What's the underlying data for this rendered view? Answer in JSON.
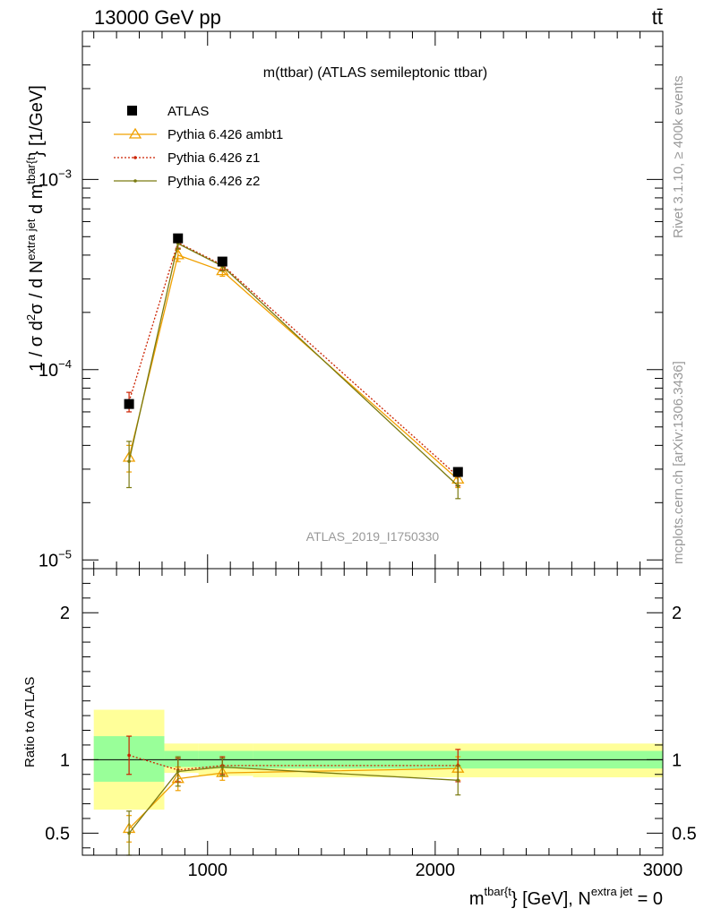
{
  "header": {
    "energy_label": "13000 GeV pp",
    "process_label": "tt̄"
  },
  "side_labels": {
    "rivet": "Rivet 3.1.10, ≥ 400k events",
    "mcplots": "mcplots.cern.ch [arXiv:1306.3436]"
  },
  "colors": {
    "data": "#000000",
    "ambt1": "#f0a000",
    "z1": "#cc2200",
    "z2": "#7a7a10",
    "band_inner": "#99ff99",
    "band_outer": "#ffff99",
    "watermark": "#999999"
  },
  "chart_data": {
    "type": "scatter",
    "title": "m(ttbar) (ATLAS semileptonic ttbar)",
    "analysis_id": "ATLAS_2019_I1750330",
    "xlabel_main": "m",
    "xlabel_sup": "tbar{t",
    "xlabel_rest": "} [GeV], N",
    "xlabel_sup2": "extra jet",
    "xlabel_tail": " = 0",
    "ylabel_lead": "1 / σ d",
    "ylabel_sup1": "2",
    "ylabel_mid": "σ / d N",
    "ylabel_sup2": "extra jet",
    "ylabel_mid2": " d m",
    "ylabel_sup3": "tbar{t",
    "ylabel_tail": "} [1/GeV]",
    "ratio_ylabel": "Ratio to ATLAS",
    "xlim": [
      450,
      3000
    ],
    "ylim": [
      9e-06,
      0.006
    ],
    "ratio_ylim": [
      0.35,
      2.3
    ],
    "x_ticks": [
      1000,
      2000,
      3000
    ],
    "x_tick_labels": [
      "1000",
      "2000",
      "3000"
    ],
    "y_major_ticks": [
      1e-05,
      0.0001,
      0.001
    ],
    "y_tick_labels": [
      {
        "mant": "10",
        "exp": "−5"
      },
      {
        "mant": "10",
        "exp": "−4"
      },
      {
        "mant": "10",
        "exp": "−3"
      }
    ],
    "ratio_ticks": [
      0.5,
      1,
      2
    ],
    "ratio_tick_labels": [
      "0.5",
      "1",
      "2"
    ],
    "bins": [
      [
        500,
        810
      ],
      [
        810,
        960
      ],
      [
        960,
        1200
      ],
      [
        1200,
        3000
      ]
    ],
    "band_inner": [
      [
        0.85,
        1.16
      ],
      [
        0.95,
        1.06
      ],
      [
        0.94,
        1.06
      ],
      [
        0.94,
        1.06
      ]
    ],
    "band_outer": [
      [
        0.66,
        1.34
      ],
      [
        0.91,
        1.11
      ],
      [
        0.89,
        1.11
      ],
      [
        0.88,
        1.11
      ]
    ],
    "series": [
      {
        "name": "ATLAS",
        "style": "data",
        "x": [
          655,
          870,
          1065,
          2100
        ],
        "y": [
          6.6e-05,
          0.00049,
          0.00037,
          2.9e-05
        ],
        "ratio": [
          1,
          1,
          1,
          1
        ]
      },
      {
        "name": "Pythia 6.426 ambt1",
        "style": "ambt1",
        "x": [
          655,
          870,
          1065,
          2100
        ],
        "y": [
          3.45e-05,
          0.0004,
          0.00033,
          2.65e-05
        ],
        "yerr": [
          5.5e-06,
          3e-05,
          2e-05,
          2.5e-06
        ],
        "ratio": [
          0.53,
          0.87,
          0.91,
          0.94
        ],
        "ratio_err": [
          0.09,
          0.08,
          0.05,
          0.08
        ]
      },
      {
        "name": "Pythia 6.426 z1",
        "style": "z1",
        "x": [
          655,
          870,
          1065,
          2100
        ],
        "y": [
          6.8e-05,
          0.000465,
          0.000355,
          2.75e-05
        ],
        "yerr": [
          8e-06,
          3e-05,
          2e-05,
          3e-06
        ],
        "ratio": [
          1.03,
          0.93,
          0.96,
          0.96
        ],
        "ratio_err": [
          0.13,
          0.08,
          0.06,
          0.11
        ]
      },
      {
        "name": "Pythia 6.426 z2",
        "style": "z2",
        "x": [
          655,
          870,
          1065,
          2100
        ],
        "y": [
          3.3e-05,
          0.00046,
          0.00035,
          2.45e-05
        ],
        "yerr": [
          9e-06,
          3e-05,
          2e-05,
          3.5e-06
        ],
        "ratio": [
          0.5,
          0.92,
          0.95,
          0.86
        ],
        "ratio_err": [
          0.15,
          0.1,
          0.06,
          0.1
        ]
      }
    ]
  }
}
